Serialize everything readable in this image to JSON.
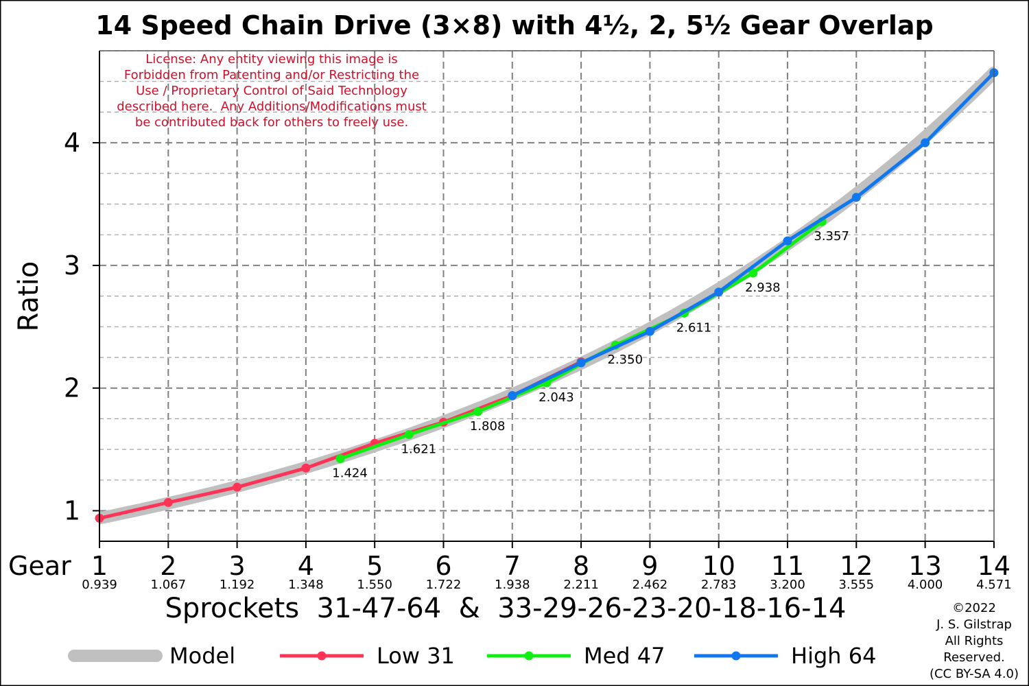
{
  "chart_data": {
    "type": "line",
    "title": "14 Speed Chain Drive (3×8) with 4½, 2, 5½ Gear Overlap",
    "ylabel": "Ratio",
    "xlabel_prefix": "Gear",
    "xlabel": "Sprockets  31-47-64  &  33-29-26-23-20-18-16-14",
    "xlim": [
      1,
      14
    ],
    "ylim": [
      0.75,
      4.75
    ],
    "y_ticks": [
      1,
      2,
      3,
      4
    ],
    "grid": true,
    "gear_ticks": [
      {
        "gear": "1",
        "ratio": "0.939"
      },
      {
        "gear": "2",
        "ratio": "1.067"
      },
      {
        "gear": "3",
        "ratio": "1.192"
      },
      {
        "gear": "4",
        "ratio": "1.348"
      },
      {
        "gear": "5",
        "ratio": "1.550"
      },
      {
        "gear": "6",
        "ratio": "1.722"
      },
      {
        "gear": "7",
        "ratio": "1.938"
      },
      {
        "gear": "8",
        "ratio": "2.211"
      },
      {
        "gear": "9",
        "ratio": "2.462"
      },
      {
        "gear": "10",
        "ratio": "2.783"
      },
      {
        "gear": "11",
        "ratio": "3.200"
      },
      {
        "gear": "12",
        "ratio": "3.555"
      },
      {
        "gear": "13",
        "ratio": "4.000"
      },
      {
        "gear": "14",
        "ratio": "4.571"
      }
    ],
    "series": [
      {
        "name": "Model",
        "color": "#c0c0c0",
        "x": [
          1,
          14
        ],
        "model_ratio_range": [
          0.939,
          4.571
        ]
      },
      {
        "name": "Low 31",
        "color": "#ff3355",
        "x": [
          1,
          2,
          3,
          4,
          5,
          6,
          7,
          8
        ],
        "y": [
          0.939,
          1.067,
          1.192,
          1.348,
          1.55,
          1.722,
          1.938,
          2.214
        ]
      },
      {
        "name": "Med 47",
        "color": "#11ee11",
        "x": [
          4.5,
          5.5,
          6.5,
          7.5,
          8.5,
          9.5,
          10.5,
          11.5
        ],
        "y": [
          1.424,
          1.621,
          1.808,
          2.043,
          2.35,
          2.611,
          2.938,
          3.357
        ]
      },
      {
        "name": "High 64",
        "color": "#1177ee",
        "x": [
          7,
          8,
          9,
          10,
          11,
          12,
          13,
          14
        ],
        "y": [
          1.939,
          2.206,
          2.462,
          2.783,
          3.2,
          3.555,
          4.0,
          4.571
        ]
      }
    ],
    "annotations": [
      {
        "x": 4.5,
        "y": 1.424,
        "text": "1.424"
      },
      {
        "x": 5.5,
        "y": 1.621,
        "text": "1.621"
      },
      {
        "x": 6.5,
        "y": 1.808,
        "text": "1.808"
      },
      {
        "x": 7.5,
        "y": 2.043,
        "text": "2.043"
      },
      {
        "x": 8.5,
        "y": 2.35,
        "text": "2.350"
      },
      {
        "x": 9.5,
        "y": 2.611,
        "text": "2.611"
      },
      {
        "x": 10.5,
        "y": 2.938,
        "text": "2.938"
      },
      {
        "x": 11.5,
        "y": 3.357,
        "text": "3.357"
      }
    ],
    "license_lines": [
      "License: Any entity viewing this image is",
      "Forbidden from Patenting and/or Restricting the",
      "Use / Proprietary Control of Said Technology",
      "described here.  Any Additions/Modifications must",
      "be contributed back for others to freely use."
    ],
    "copyright_lines": [
      "©2022",
      "J. S. Gilstrap",
      "All Rights",
      "Reserved.",
      "(CC BY-SA 4.0)"
    ],
    "legend_position": "bottom"
  }
}
